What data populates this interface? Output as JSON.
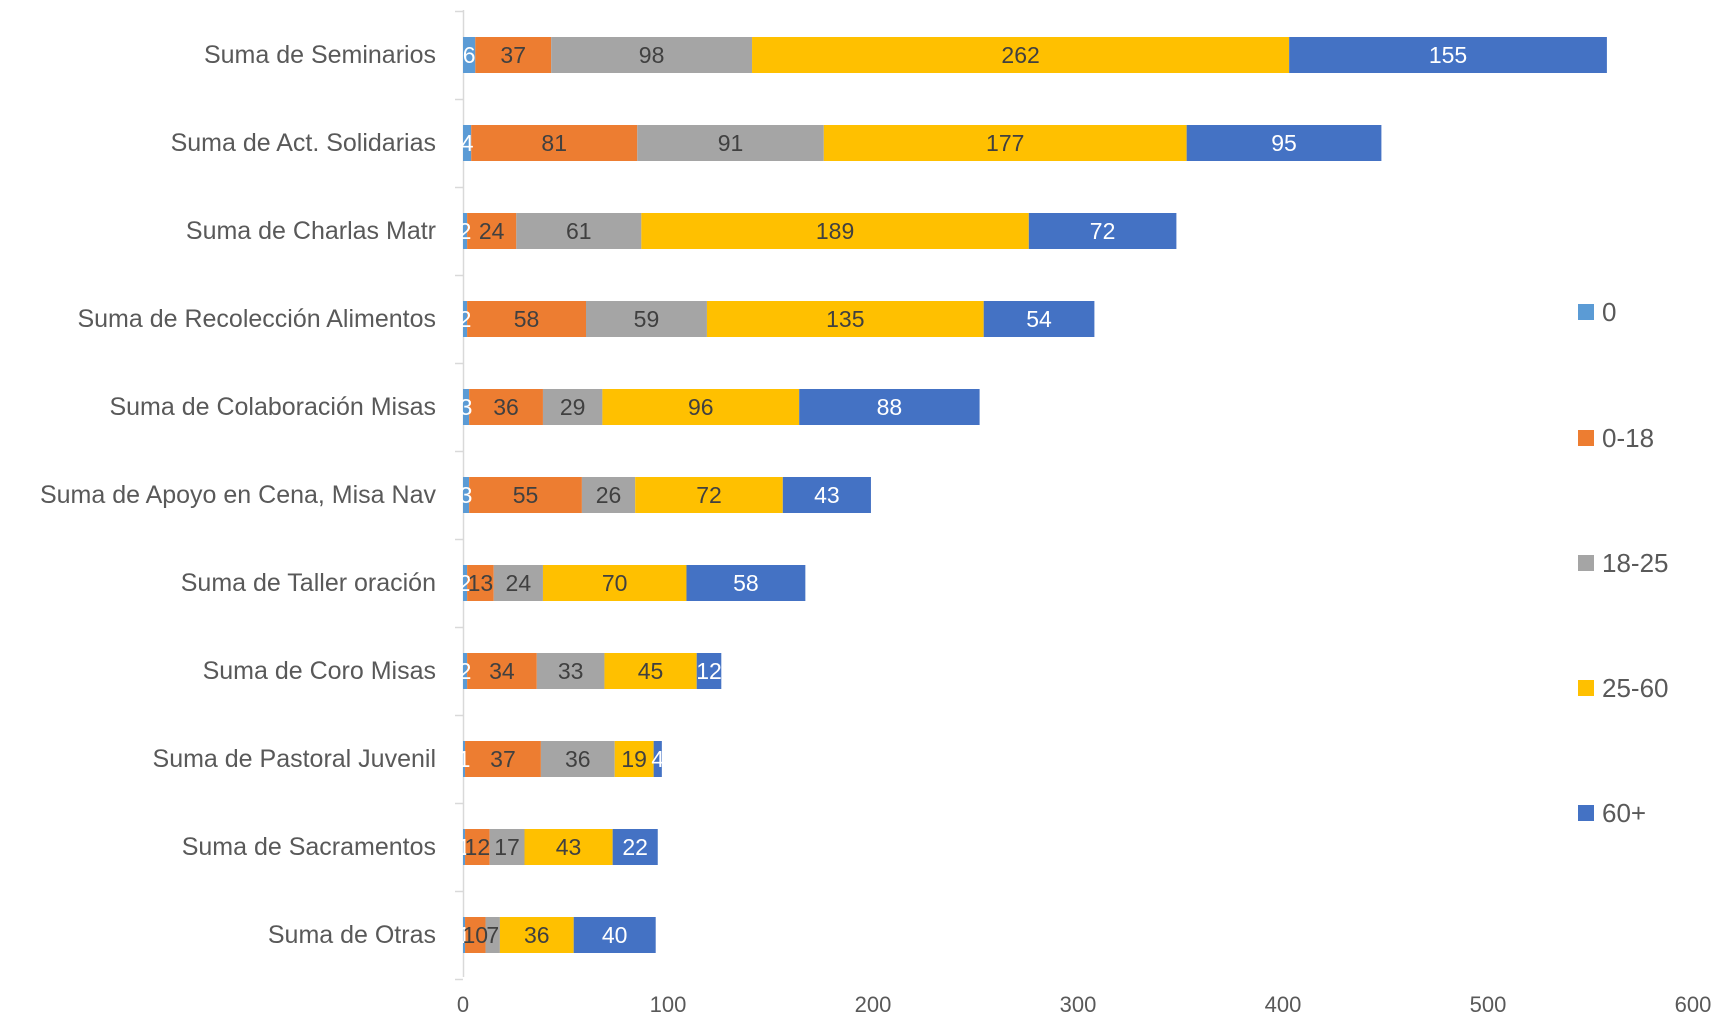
{
  "chart_data": {
    "type": "bar",
    "orientation": "horizontal",
    "stacked": true,
    "categories": [
      "Suma de Seminarios",
      "Suma de Act. Solidarias",
      "Suma de Charlas Matr",
      "Suma de Recolección Alimentos",
      "Suma de Colaboración Misas",
      "Suma de Apoyo en Cena, Misa Nav",
      "Suma de Taller oración",
      "Suma de Coro Misas",
      "Suma de Pastoral Juvenil",
      "Suma de Sacramentos",
      "Suma de Otras"
    ],
    "series": [
      {
        "name": "0",
        "color": "#5B9BD5",
        "values": [
          6,
          4,
          2,
          2,
          3,
          3,
          2,
          2,
          1,
          1,
          1
        ]
      },
      {
        "name": "0-18",
        "color": "#ED7D31",
        "values": [
          37,
          81,
          24,
          58,
          36,
          55,
          13,
          34,
          37,
          12,
          10
        ]
      },
      {
        "name": "18-25",
        "color": "#A5A5A5",
        "values": [
          98,
          91,
          61,
          59,
          29,
          26,
          24,
          33,
          36,
          17,
          7
        ]
      },
      {
        "name": "25-60",
        "color": "#FFC000",
        "values": [
          262,
          177,
          189,
          135,
          96,
          72,
          70,
          45,
          19,
          43,
          36
        ]
      },
      {
        "name": "60+",
        "color": "#4472C4",
        "values": [
          155,
          95,
          72,
          54,
          88,
          43,
          58,
          12,
          4,
          22,
          40
        ]
      }
    ],
    "xlim": [
      0,
      600
    ],
    "xticks": [
      "0",
      "100",
      "200",
      "300",
      "400",
      "500",
      "600"
    ],
    "data_labels": true,
    "gridlines": false,
    "legend_position": "right",
    "title": "",
    "xlabel": "",
    "ylabel": ""
  }
}
